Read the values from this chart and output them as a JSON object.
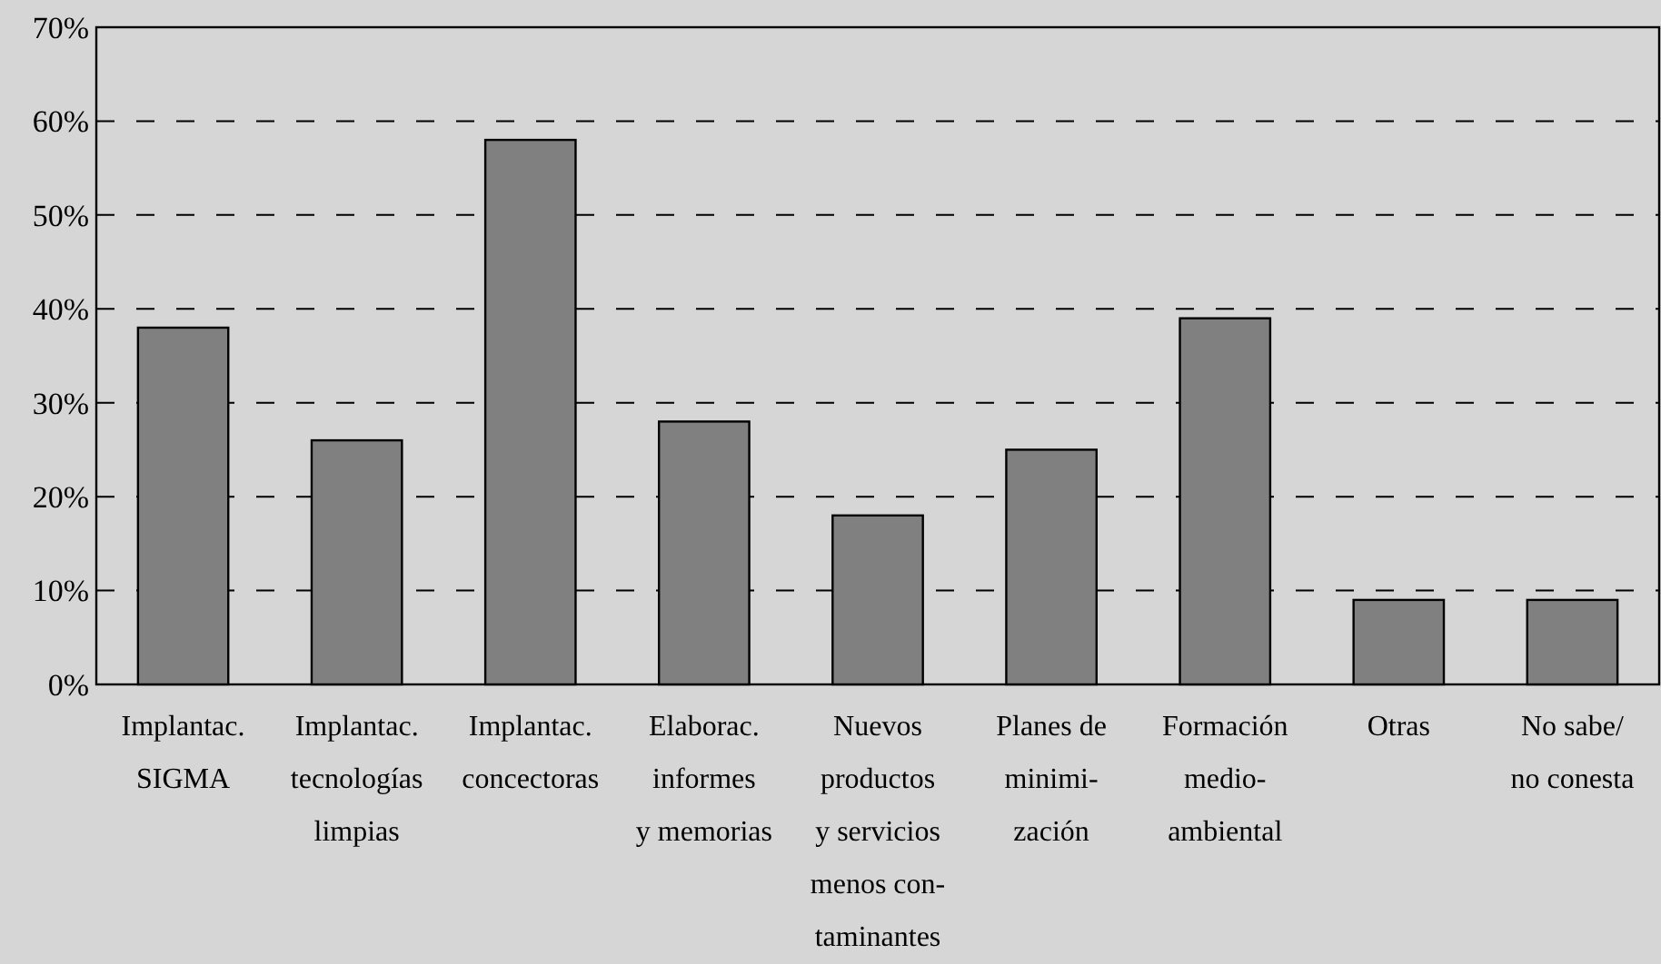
{
  "chart_data": {
    "type": "bar",
    "categories": [
      "Implantac.\nSIGMA",
      "Implantac.\ntecnologías\nlimpias",
      "Implantac.\nconcectoras",
      "Elaborac.\ninformes\ny memorias",
      "Nuevos\nproductos\ny servicios\nmenos con-\ntaminantes",
      "Planes de\nminimi-\nzación",
      "Formación\nmedio-\nambiental",
      "Otras",
      "No sabe/\nno conesta"
    ],
    "values": [
      38,
      26,
      58,
      28,
      18,
      25,
      39,
      9,
      9
    ],
    "color": "#808080",
    "ylim": [
      0,
      70
    ],
    "yticks": [
      {
        "value": 0,
        "label": "0%"
      },
      {
        "value": 10,
        "label": "10%"
      },
      {
        "value": 20,
        "label": "20%"
      },
      {
        "value": 30,
        "label": "30%"
      },
      {
        "value": 40,
        "label": "40%"
      },
      {
        "value": 50,
        "label": "50%"
      },
      {
        "value": 60,
        "label": "60%"
      },
      {
        "value": 70,
        "label": "70%"
      }
    ],
    "grid": "y"
  }
}
